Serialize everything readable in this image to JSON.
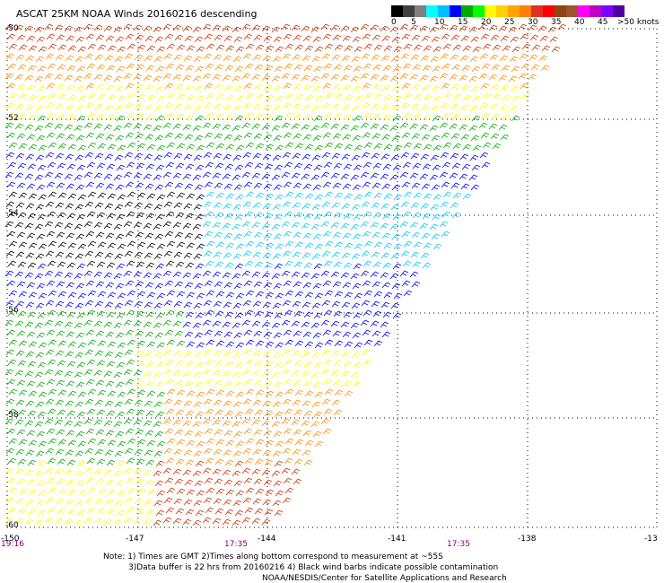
{
  "title": "ASCAT 25KM NOAA Winds 20160216 descending",
  "colorbar": {
    "labels": [
      "0",
      "5",
      "10",
      "15",
      "20",
      "25",
      "30",
      "35",
      "40",
      "45",
      ">50 knots"
    ],
    "colors": [
      "#000000",
      "#404040",
      "#808080",
      "#00ffff",
      "#00bfff",
      "#0000ff",
      "#00aa00",
      "#00ff00",
      "#ffff00",
      "#ffd000",
      "#ffa500",
      "#ff7f00",
      "#e03020",
      "#ff0000",
      "#8b4513",
      "#a0522d",
      "#ff00ff",
      "#c000c0",
      "#8000ff",
      "#5000a0"
    ]
  },
  "latitudes": [
    "-50",
    "-52",
    "-54",
    "-56",
    "-58",
    "-60"
  ],
  "longitudes": [
    "-150",
    "-147",
    "-144",
    "-141",
    "-138",
    "-13"
  ],
  "times": [
    "19:16",
    "17:35",
    "17:35"
  ],
  "notes": [
    "Note: 1) Times are GMT 2)Times along bottom correspond to measurement at ~55S",
    "3)Data buffer is 22 hrs from 20160216 4) Black wind barbs indicate possible contamination",
    "NOAA/NESDIS/Center for Satellite Applications and Research"
  ],
  "map_features": {
    "wind_barbs": "swath of wind barbs colored by speed",
    "speed_colors": {
      "calm": "#000000",
      "light": "#00c8ff",
      "moderate": "#0000ff",
      "fresh": "#00aa00",
      "strong": "#ffff00",
      "gale": "#ff8c00",
      "storm": "#cc3300"
    }
  }
}
